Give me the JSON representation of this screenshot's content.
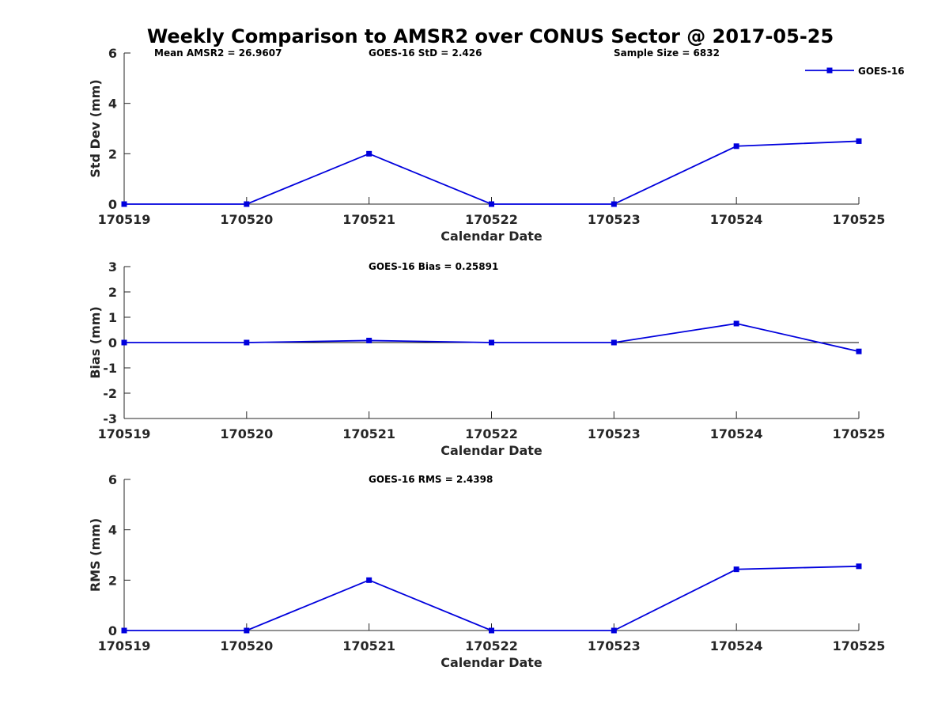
{
  "figure_title": "Weekly Comparison to AMSR2 over CONUS Sector @ 2017-05-25",
  "series_color": "#0000DD",
  "legend": {
    "label": "GOES-16",
    "placement": "top-right"
  },
  "chart_data": [
    {
      "type": "line",
      "categories": [
        "170519",
        "170520",
        "170521",
        "170522",
        "170523",
        "170524",
        "170525"
      ],
      "series": [
        {
          "name": "GOES-16",
          "values": [
            0,
            0,
            2.0,
            0,
            0,
            2.3,
            2.5
          ]
        }
      ],
      "xlabel": "Calendar Date",
      "ylabel": "Std Dev (mm)",
      "ylim": [
        0,
        6
      ],
      "yticks": [
        "0",
        "2",
        "4",
        "6"
      ],
      "zero_line": false,
      "annotations": [
        "Mean AMSR2 = 26.9607",
        "GOES-16 StD = 2.426",
        "Sample Size = 6832"
      ]
    },
    {
      "type": "line",
      "categories": [
        "170519",
        "170520",
        "170521",
        "170522",
        "170523",
        "170524",
        "170525"
      ],
      "series": [
        {
          "name": "GOES-16",
          "values": [
            0,
            0,
            0.08,
            0,
            0,
            0.75,
            -0.35
          ]
        }
      ],
      "xlabel": "Calendar Date",
      "ylabel": "Bias (mm)",
      "ylim": [
        -3,
        3
      ],
      "yticks": [
        "-3",
        "-2",
        "-1",
        "0",
        "1",
        "2",
        "3"
      ],
      "zero_line": true,
      "annotations": [
        "GOES-16 Bias  = 0.25891"
      ]
    },
    {
      "type": "line",
      "categories": [
        "170519",
        "170520",
        "170521",
        "170522",
        "170523",
        "170524",
        "170525"
      ],
      "series": [
        {
          "name": "GOES-16",
          "values": [
            0,
            0,
            2.0,
            0,
            0,
            2.43,
            2.55
          ]
        }
      ],
      "xlabel": "Calendar Date",
      "ylabel": "RMS (mm)",
      "ylim": [
        0,
        6
      ],
      "yticks": [
        "0",
        "2",
        "4",
        "6"
      ],
      "zero_line": false,
      "annotations": [
        "GOES-16 RMS = 2.4398"
      ]
    }
  ]
}
